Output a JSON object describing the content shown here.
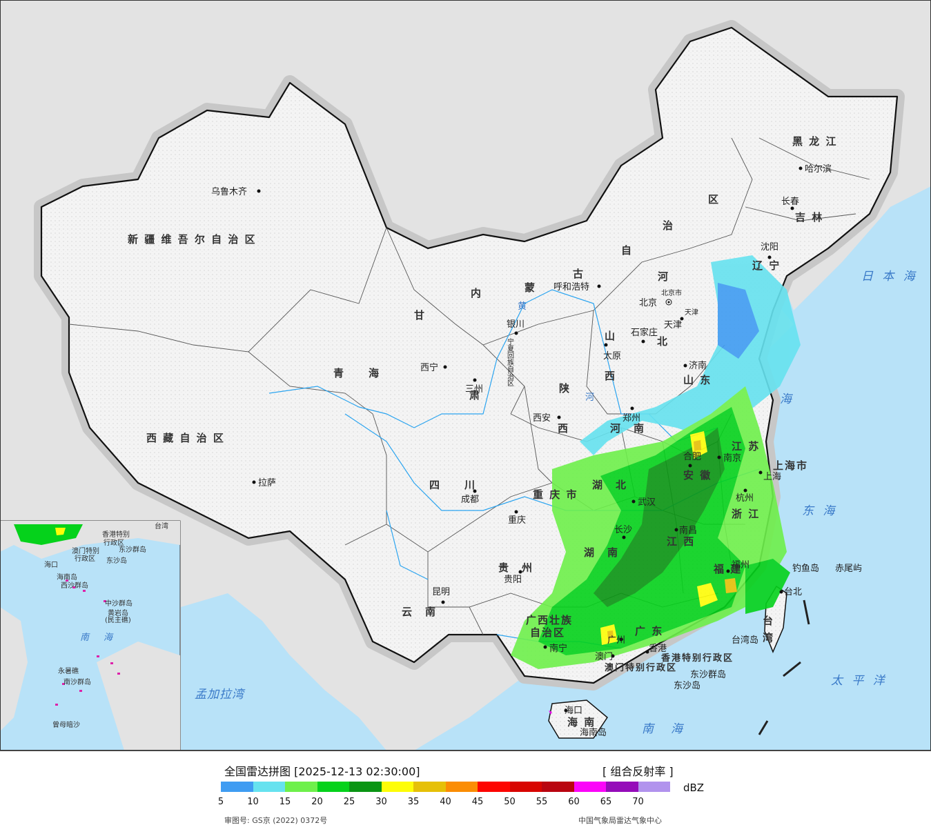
{
  "map": {
    "provinces": [
      {
        "id": "xinjiang",
        "text": "新 疆 维 吾 尔 自 治 区"
      },
      {
        "id": "xizang",
        "text": "西 藏 自 治 区"
      },
      {
        "id": "qinghai",
        "text": "青　　海"
      },
      {
        "id": "gansu",
        "text": "甘"
      },
      {
        "id": "neimenggu-1",
        "text": "内"
      },
      {
        "id": "neimenggu-2",
        "text": "蒙"
      },
      {
        "id": "neimenggu-3",
        "text": "古"
      },
      {
        "id": "neimenggu-4",
        "text": "自"
      },
      {
        "id": "neimenggu-5",
        "text": "治"
      },
      {
        "id": "neimenggu-6",
        "text": "区"
      },
      {
        "id": "heilongjiang",
        "text": "黑 龙 江"
      },
      {
        "id": "jilin",
        "text": "吉 林"
      },
      {
        "id": "liaoning",
        "text": "辽 宁"
      },
      {
        "id": "hebei-1",
        "text": "河"
      },
      {
        "id": "hebei-2",
        "text": "北"
      },
      {
        "id": "shanxi-1",
        "text": "山"
      },
      {
        "id": "shanxi-2",
        "text": "西"
      },
      {
        "id": "shaanxi-1",
        "text": "陕"
      },
      {
        "id": "shaanxi-2",
        "text": "西"
      },
      {
        "id": "shandong",
        "text": "山 东"
      },
      {
        "id": "henan",
        "text": "河　南"
      },
      {
        "id": "jiangsu",
        "text": "江 苏"
      },
      {
        "id": "anhui",
        "text": "安 徽"
      },
      {
        "id": "hubei",
        "text": "湖　北"
      },
      {
        "id": "sichuan",
        "text": "四　　川"
      },
      {
        "id": "chongqing",
        "text": "重 庆 市"
      },
      {
        "id": "hunan",
        "text": "湖　南"
      },
      {
        "id": "jiangxi",
        "text": "江 西"
      },
      {
        "id": "zhejiang",
        "text": "浙 江"
      },
      {
        "id": "fujian",
        "text": "福 建"
      },
      {
        "id": "guizhou",
        "text": "贵　州"
      },
      {
        "id": "yunnan",
        "text": "云　南"
      },
      {
        "id": "guangxi-1",
        "text": "广西壮族"
      },
      {
        "id": "guangxi-2",
        "text": "自治区"
      },
      {
        "id": "guangdong",
        "text": "广 东"
      },
      {
        "id": "hainan",
        "text": "海 南"
      },
      {
        "id": "taiwan",
        "text": "台 湾"
      },
      {
        "id": "ningxia",
        "text": "宁夏回族自治区"
      },
      {
        "id": "gansu-2",
        "text": "肃"
      },
      {
        "id": "shanghai",
        "text": "上海市"
      },
      {
        "id": "hk-sar",
        "text": "香港特别行政区"
      },
      {
        "id": "macau-sar",
        "text": "澳门特别行政区"
      }
    ],
    "cities": [
      {
        "id": "urumqi",
        "text": "乌鲁木齐"
      },
      {
        "id": "lhasa",
        "text": "拉萨"
      },
      {
        "id": "xining",
        "text": "西宁"
      },
      {
        "id": "lanzhou",
        "text": "三州"
      },
      {
        "id": "yinchuan",
        "text": "银川"
      },
      {
        "id": "hohhot",
        "text": "呼和浩特"
      },
      {
        "id": "beijing",
        "text": "北京"
      },
      {
        "id": "beijing-city",
        "text": "北京市"
      },
      {
        "id": "tianjin",
        "text": "天津"
      },
      {
        "id": "tianjin-city",
        "text": "天津"
      },
      {
        "id": "shijiazhuang",
        "text": "石家庄"
      },
      {
        "id": "taiyuan",
        "text": "太原"
      },
      {
        "id": "jinan",
        "text": "济南"
      },
      {
        "id": "xian",
        "text": "西安"
      },
      {
        "id": "zhengzhou",
        "text": "郑州"
      },
      {
        "id": "nanjing",
        "text": "南京"
      },
      {
        "id": "hefei",
        "text": "合肥"
      },
      {
        "id": "shanghai-pt",
        "text": "上海"
      },
      {
        "id": "wuhan",
        "text": "武汉"
      },
      {
        "id": "hangzhou",
        "text": "杭州"
      },
      {
        "id": "chengdu",
        "text": "成都"
      },
      {
        "id": "chongqing-pt",
        "text": "重庆"
      },
      {
        "id": "changsha",
        "text": "长沙"
      },
      {
        "id": "nanchang",
        "text": "南昌"
      },
      {
        "id": "fuzhou",
        "text": "福州"
      },
      {
        "id": "guiyang",
        "text": "贵阳"
      },
      {
        "id": "kunming",
        "text": "昆明"
      },
      {
        "id": "nanning",
        "text": "南宁"
      },
      {
        "id": "guangzhou",
        "text": "广州"
      },
      {
        "id": "hongkong",
        "text": "香港"
      },
      {
        "id": "macau",
        "text": "澳门"
      },
      {
        "id": "haikou",
        "text": "海口"
      },
      {
        "id": "taipei",
        "text": "台北"
      },
      {
        "id": "harbin",
        "text": "哈尔滨"
      },
      {
        "id": "changchun",
        "text": "长春"
      },
      {
        "id": "shenyang",
        "text": "沈阳"
      }
    ],
    "islands": [
      {
        "id": "diaoyu",
        "text": "钓鱼岛"
      },
      {
        "id": "chiwei",
        "text": "赤尾屿"
      },
      {
        "id": "taiwan-island",
        "text": "台湾岛"
      },
      {
        "id": "dongsha-qundao",
        "text": "东沙群岛"
      },
      {
        "id": "dongsha-dao",
        "text": "东沙岛"
      },
      {
        "id": "hainan-island",
        "text": "海南岛"
      }
    ],
    "seas": [
      {
        "id": "sea-of-japan",
        "text": "日 本 海"
      },
      {
        "id": "yellow-sea",
        "text": "海"
      },
      {
        "id": "east-china-sea",
        "text": "东 海"
      },
      {
        "id": "pacific",
        "text": "太 平 洋"
      },
      {
        "id": "south-china-sea",
        "text": "南　海"
      },
      {
        "id": "bay-of-bengal",
        "text": "孟加拉湾"
      },
      {
        "id": "huang-he",
        "text": "黄"
      },
      {
        "id": "he",
        "text": "河"
      }
    ],
    "inset": [
      {
        "id": "inset-hk",
        "text": "香港特别"
      },
      {
        "id": "inset-hk2",
        "text": "行政区"
      },
      {
        "id": "inset-macau",
        "text": "澳门特别"
      },
      {
        "id": "inset-macau2",
        "text": "行政区"
      },
      {
        "id": "inset-dongsha",
        "text": "东沙群岛"
      },
      {
        "id": "inset-dongsha2",
        "text": "东沙岛"
      },
      {
        "id": "inset-taiwan",
        "text": "台湾"
      },
      {
        "id": "inset-haikou",
        "text": "海口"
      },
      {
        "id": "inset-hainan",
        "text": "海南岛"
      },
      {
        "id": "inset-xisha",
        "text": "西沙群岛"
      },
      {
        "id": "inset-zhongsha",
        "text": "中沙群岛"
      },
      {
        "id": "inset-huangyan",
        "text": "黄岩岛"
      },
      {
        "id": "inset-minzhu",
        "text": "(民主礁)"
      },
      {
        "id": "inset-nanhai",
        "text": "南　海"
      },
      {
        "id": "inset-nansha",
        "text": "南沙群岛"
      },
      {
        "id": "inset-yongshu",
        "text": "永暑礁"
      },
      {
        "id": "inset-zengmu",
        "text": "曾母暗沙"
      }
    ]
  },
  "legend": {
    "title": "全国雷达拼图 [2025-12-13 02:30:00]",
    "product": "[ 组合反射率 ]",
    "unit": "dBZ",
    "ticks": [
      "5",
      "10",
      "15",
      "20",
      "25",
      "30",
      "35",
      "40",
      "45",
      "50",
      "55",
      "60",
      "65",
      "70"
    ],
    "colors": [
      "#3f9cf2",
      "#66e2ef",
      "#6ef04b",
      "#05d21b",
      "#0a9513",
      "#fefd07",
      "#e6c007",
      "#fb8d04",
      "#fd0500",
      "#d80500",
      "#b90510",
      "#fb05f9",
      "#950cb9",
      "#b193ed"
    ],
    "review_no": "审图号: GS京 (2022) 0372号",
    "agency": "中国气象局雷达气象中心"
  }
}
